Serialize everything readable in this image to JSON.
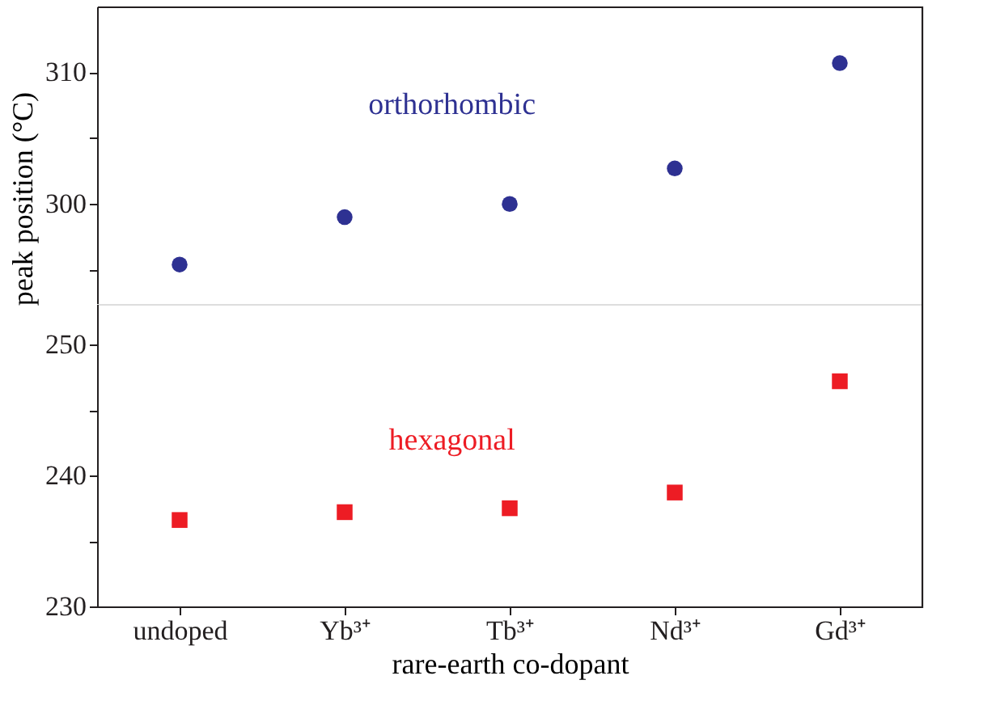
{
  "chart_data": [
    {
      "type": "scatter",
      "categories": [
        null,
        null,
        null,
        null,
        null
      ],
      "ylim": [
        292.4,
        315
      ],
      "yticks": [
        {
          "value": 295,
          "label": null
        },
        300,
        {
          "value": 305,
          "label": null
        },
        310
      ],
      "tick_labels": "y",
      "grid": false,
      "legend": false,
      "marker": "circle",
      "series": [
        {
          "name": "orthorhombic",
          "color": "#2e3192",
          "values": [
            295.4,
            299.0,
            300.0,
            302.7,
            310.7
          ]
        }
      ]
    },
    {
      "type": "scatter",
      "categories": [
        "undoped",
        "Yb³⁺",
        "Tb³⁺",
        "Nd³⁺",
        "Gd³⁺"
      ],
      "ylim": [
        230,
        253.1
      ],
      "yticks": [
        230,
        {
          "value": 235,
          "label": null
        },
        240,
        {
          "value": 245,
          "label": null
        },
        250
      ],
      "xlabel": "rare-earth co-dopant",
      "ylabel": "peak position  (°C)",
      "grid": false,
      "legend": false,
      "marker": "square",
      "series": [
        {
          "name": "hexagonal",
          "color": "#ed1c24",
          "values": [
            236.6,
            237.2,
            237.5,
            238.7,
            247.2
          ]
        }
      ]
    }
  ]
}
